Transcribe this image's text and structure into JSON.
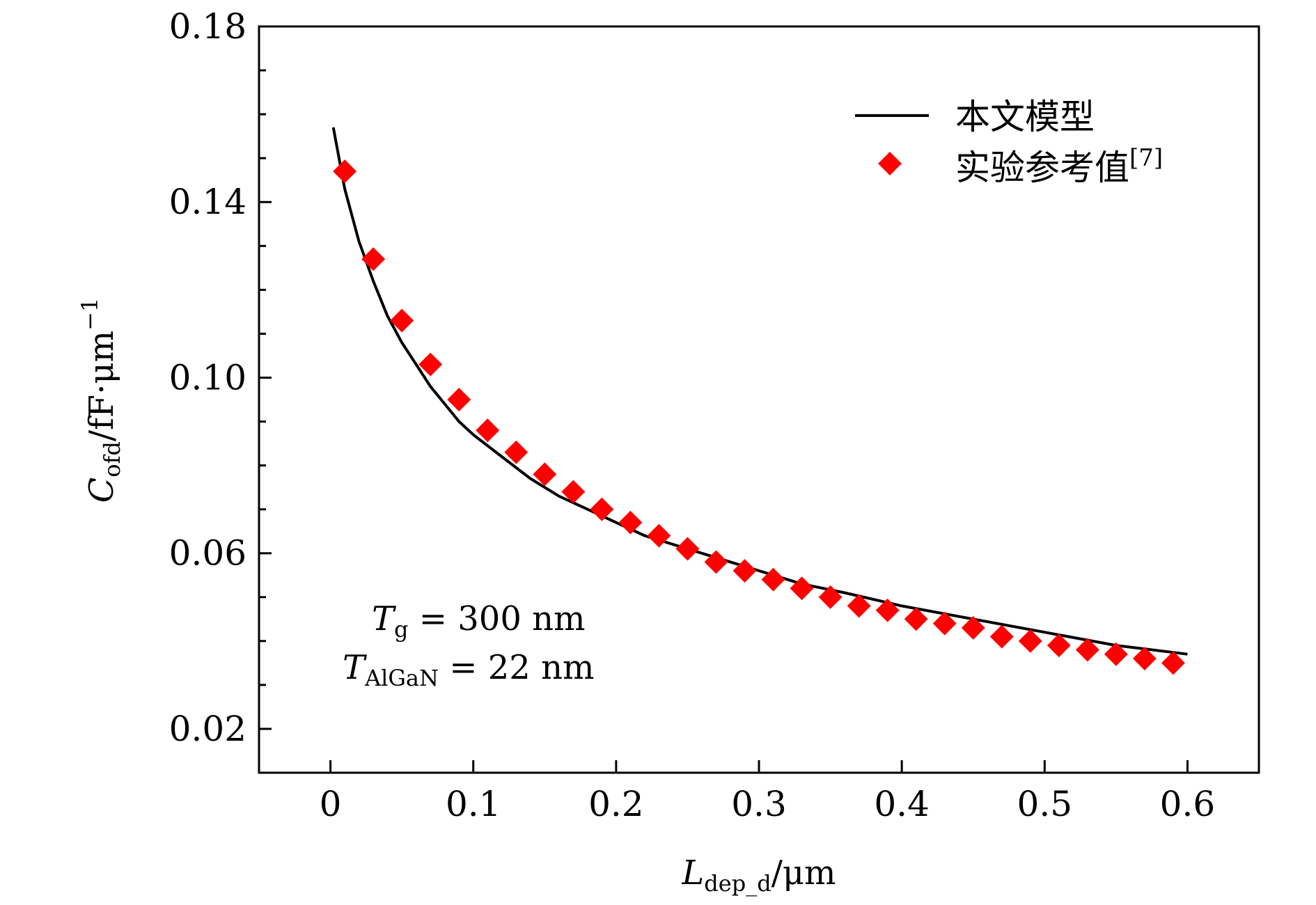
{
  "chart_data": {
    "type": "line",
    "xlim": [
      -0.05,
      0.65
    ],
    "ylim": [
      0.01,
      0.18
    ],
    "xticks": [
      0,
      0.1,
      0.2,
      0.3,
      0.4,
      0.5,
      0.6
    ],
    "xtick_labels": [
      "0",
      "0.1",
      "0.2",
      "0.3",
      "0.4",
      "0.5",
      "0.6"
    ],
    "yticks": [
      0.02,
      0.06,
      0.1,
      0.14,
      0.18
    ],
    "ytick_labels": [
      "0.02",
      "0.06",
      "0.10",
      "0.14",
      "0.18"
    ],
    "yminor": [
      0.04,
      0.08,
      0.12,
      0.16
    ],
    "xlabel": {
      "main": "L",
      "sub": "dep_d",
      "tail": "/μm"
    },
    "ylabel": {
      "main": "C",
      "sub": "ofd",
      "tail": "/fF·μm",
      "sup": "−1"
    },
    "legend": {
      "position": "top-right",
      "model_label": "本文模型",
      "experiment_label": "实验参考值",
      "experiment_ref": "[7]"
    },
    "annotation": {
      "line1": {
        "main": "T",
        "sub": "g",
        "tail": " = 300 nm"
      },
      "line2": {
        "main": "T",
        "sub": "AlGaN",
        "tail": " = 22 nm"
      }
    },
    "series": [
      {
        "name": "本文模型",
        "kind": "line",
        "color": "#000000",
        "x": [
          0.002,
          0.01,
          0.02,
          0.03,
          0.04,
          0.05,
          0.06,
          0.07,
          0.08,
          0.09,
          0.1,
          0.12,
          0.14,
          0.16,
          0.18,
          0.2,
          0.22,
          0.25,
          0.28,
          0.3,
          0.33,
          0.36,
          0.4,
          0.45,
          0.5,
          0.55,
          0.6
        ],
        "y": [
          0.157,
          0.143,
          0.131,
          0.122,
          0.114,
          0.108,
          0.103,
          0.098,
          0.094,
          0.09,
          0.087,
          0.082,
          0.077,
          0.073,
          0.07,
          0.067,
          0.064,
          0.061,
          0.058,
          0.056,
          0.053,
          0.051,
          0.048,
          0.045,
          0.042,
          0.039,
          0.037
        ]
      },
      {
        "name": "实验参考值",
        "kind": "scatter",
        "color": "#ff0000",
        "x": [
          0.01,
          0.03,
          0.05,
          0.07,
          0.09,
          0.11,
          0.13,
          0.15,
          0.17,
          0.19,
          0.21,
          0.23,
          0.25,
          0.27,
          0.29,
          0.31,
          0.33,
          0.35,
          0.37,
          0.39,
          0.41,
          0.43,
          0.45,
          0.47,
          0.49,
          0.51,
          0.53,
          0.55,
          0.57,
          0.59
        ],
        "y": [
          0.147,
          0.127,
          0.113,
          0.103,
          0.095,
          0.088,
          0.083,
          0.078,
          0.074,
          0.07,
          0.067,
          0.064,
          0.061,
          0.058,
          0.056,
          0.054,
          0.052,
          0.05,
          0.048,
          0.047,
          0.045,
          0.044,
          0.043,
          0.041,
          0.04,
          0.039,
          0.038,
          0.037,
          0.036,
          0.035
        ]
      }
    ]
  }
}
